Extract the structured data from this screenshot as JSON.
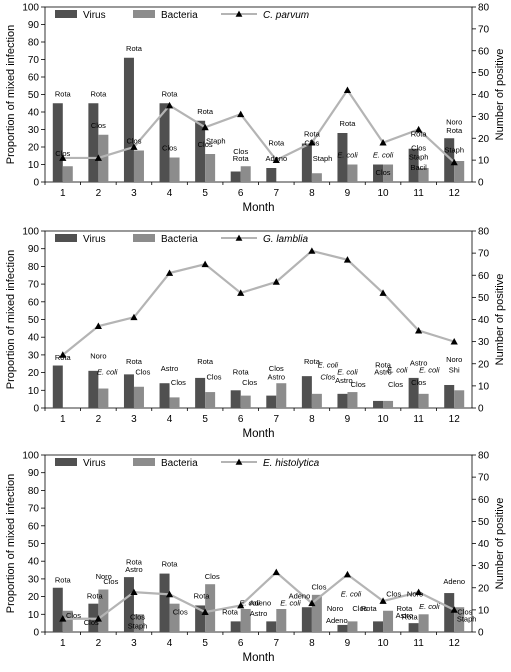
{
  "chart_data": [
    {
      "type": "bar",
      "title": "",
      "categories": [
        "1",
        "2",
        "3",
        "4",
        "5",
        "6",
        "7",
        "8",
        "9",
        "10",
        "11",
        "12"
      ],
      "xlabel": "Month",
      "ylabel": "Proportion of mixed infection",
      "y2label": "Number of positive",
      "ylim": [
        0,
        100
      ],
      "y2lim": [
        0,
        80
      ],
      "yticks": [
        0,
        10,
        20,
        30,
        40,
        50,
        60,
        70,
        80,
        90,
        100
      ],
      "y2ticks": [
        0,
        10,
        20,
        30,
        40,
        50,
        60,
        70,
        80
      ],
      "legend": {
        "position": "top-left",
        "entries": [
          "Virus",
          "Bacteria",
          "C. parvum"
        ],
        "italic": [
          false,
          false,
          true
        ]
      },
      "series": [
        {
          "name": "Virus",
          "kind": "bar",
          "color": "#505050",
          "values": [
            45,
            45,
            71,
            45,
            35,
            6,
            8,
            22,
            28,
            10,
            19,
            25
          ]
        },
        {
          "name": "Bacteria",
          "kind": "bar",
          "color": "#8c8c8c",
          "values": [
            9,
            27,
            18,
            14,
            16,
            9,
            0,
            5,
            10,
            10,
            8,
            12
          ]
        },
        {
          "name": "C. parvum",
          "kind": "line",
          "axis": "right",
          "color": "#b4b4b4",
          "values": [
            11,
            11,
            16,
            35,
            25,
            31,
            10,
            18,
            42,
            18,
            24,
            9
          ]
        }
      ],
      "annotations": [
        {
          "text": "Rota",
          "month": 1,
          "y": 49
        },
        {
          "text": "Clos",
          "month": 1,
          "y": 15
        },
        {
          "text": "Rota",
          "month": 2,
          "y": 49
        },
        {
          "text": "Clos",
          "month": 2,
          "y": 31
        },
        {
          "text": "Rota",
          "month": 3,
          "y": 75
        },
        {
          "text": "Clos",
          "month": 3,
          "y": 22
        },
        {
          "text": "Rota",
          "month": 4,
          "y": 49
        },
        {
          "text": "Clos",
          "month": 4,
          "y": 18
        },
        {
          "text": "Rota",
          "month": 5,
          "y": 39
        },
        {
          "text": "Clos",
          "month": 5,
          "y": 20
        },
        {
          "text": "Staph",
          "month": 5,
          "y": 22,
          "dx": 0.3
        },
        {
          "text": "Rota",
          "month": 6,
          "y": 12
        },
        {
          "text": "Clos",
          "month": 6,
          "y": 16
        },
        {
          "text": "Rota",
          "month": 7,
          "y": 21
        },
        {
          "text": "Adeno",
          "month": 7,
          "y": 12
        },
        {
          "text": "Rota",
          "month": 8,
          "y": 26
        },
        {
          "text": "Clos",
          "month": 8,
          "y": 21
        },
        {
          "text": "Staph",
          "month": 8,
          "y": 12,
          "dx": 0.3
        },
        {
          "text": "Rota",
          "month": 9,
          "y": 32
        },
        {
          "text": "E. coli",
          "month": 9,
          "y": 14,
          "italic": true
        },
        {
          "text": "E. coli",
          "month": 10,
          "y": 14,
          "italic": true
        },
        {
          "text": "Clos",
          "month": 10,
          "y": 4
        },
        {
          "text": "Rota",
          "month": 11,
          "y": 26
        },
        {
          "text": "Clos",
          "month": 11,
          "y": 18
        },
        {
          "text": "Staph",
          "month": 11,
          "y": 13
        },
        {
          "text": "Bacil",
          "month": 11,
          "y": 7
        },
        {
          "text": "Noro",
          "month": 12,
          "y": 33
        },
        {
          "text": "Rota",
          "month": 12,
          "y": 28
        },
        {
          "text": "Staph",
          "month": 12,
          "y": 17
        }
      ]
    },
    {
      "type": "bar",
      "title": "",
      "categories": [
        "1",
        "2",
        "3",
        "4",
        "5",
        "6",
        "7",
        "8",
        "9",
        "10",
        "11",
        "12"
      ],
      "xlabel": "Month",
      "ylabel": "Proportion of mixed infection",
      "y2label": "Number of positive",
      "ylim": [
        0,
        100
      ],
      "y2lim": [
        0,
        80
      ],
      "yticks": [
        0,
        10,
        20,
        30,
        40,
        50,
        60,
        70,
        80,
        90,
        100
      ],
      "y2ticks": [
        0,
        10,
        20,
        30,
        40,
        50,
        60,
        70,
        80
      ],
      "legend": {
        "position": "top-left",
        "entries": [
          "Virus",
          "Bacteria",
          "G. lamblia"
        ],
        "italic": [
          false,
          false,
          true
        ]
      },
      "series": [
        {
          "name": "Virus",
          "kind": "bar",
          "color": "#505050",
          "values": [
            24,
            21,
            19,
            14,
            17,
            10,
            7,
            18,
            8,
            4,
            17,
            13
          ]
        },
        {
          "name": "Bacteria",
          "kind": "bar",
          "color": "#8c8c8c",
          "values": [
            0,
            11,
            12,
            6,
            9,
            7,
            14,
            8,
            9,
            4,
            8,
            10
          ]
        },
        {
          "name": "G. lamblia",
          "kind": "line",
          "axis": "right",
          "color": "#b4b4b4",
          "values": [
            24,
            37,
            41,
            61,
            65,
            52,
            57,
            71,
            67,
            52,
            35,
            30
          ]
        }
      ],
      "annotations": [
        {
          "text": "Rota",
          "month": 1,
          "y": 27
        },
        {
          "text": "Noro",
          "month": 2,
          "y": 28
        },
        {
          "text": "E. coli",
          "month": 2,
          "y": 19,
          "italic": true,
          "dx": 0.25
        },
        {
          "text": "Rota",
          "month": 3,
          "y": 25
        },
        {
          "text": "Clos",
          "month": 3,
          "y": 19,
          "dx": 0.25
        },
        {
          "text": "Astro",
          "month": 4,
          "y": 21
        },
        {
          "text": "Clos",
          "month": 4,
          "y": 13,
          "dx": 0.25
        },
        {
          "text": "Rota",
          "month": 5,
          "y": 25
        },
        {
          "text": "Clos",
          "month": 5,
          "y": 16,
          "dx": 0.25
        },
        {
          "text": "Rota",
          "month": 6,
          "y": 19
        },
        {
          "text": "Clos",
          "month": 6,
          "y": 13,
          "dx": 0.25
        },
        {
          "text": "Clos",
          "month": 7,
          "y": 21
        },
        {
          "text": "Astro",
          "month": 7,
          "y": 16
        },
        {
          "text": "Rota",
          "month": 8,
          "y": 25
        },
        {
          "text": "E. coli",
          "month": 8,
          "y": 23,
          "italic": true,
          "dx": 0.45
        },
        {
          "text": "Clos",
          "month": 8,
          "y": 16,
          "italic": true,
          "dx": 0.45
        },
        {
          "text": "E. coli",
          "month": 9,
          "y": 19,
          "italic": true
        },
        {
          "text": "Astro",
          "month": 9,
          "y": 14,
          "dx": -0.1
        },
        {
          "text": "Clos",
          "month": 9,
          "y": 12,
          "dx": 0.3
        },
        {
          "text": "Rota",
          "month": 10,
          "y": 23
        },
        {
          "text": "Astro",
          "month": 10,
          "y": 19
        },
        {
          "text": "E. coli",
          "month": 10,
          "y": 20,
          "italic": true,
          "dx": 0.4
        },
        {
          "text": "Clos",
          "month": 10,
          "y": 12,
          "dx": 0.35
        },
        {
          "text": "Astro",
          "month": 11,
          "y": 24
        },
        {
          "text": "E. coli",
          "month": 11,
          "y": 20,
          "italic": true,
          "dx": 0.3
        },
        {
          "text": "Clos",
          "month": 11,
          "y": 13
        },
        {
          "text": "Noro",
          "month": 12,
          "y": 26
        },
        {
          "text": "Shi",
          "month": 12,
          "y": 20
        }
      ]
    },
    {
      "type": "bar",
      "title": "",
      "categories": [
        "1",
        "2",
        "3",
        "4",
        "5",
        "6",
        "7",
        "8",
        "9",
        "10",
        "11",
        "12"
      ],
      "xlabel": "Month",
      "ylabel": "Proportion of mixed infection",
      "y2label": "Number of positive",
      "ylim": [
        0,
        100
      ],
      "y2lim": [
        0,
        80
      ],
      "yticks": [
        0,
        10,
        20,
        30,
        40,
        50,
        60,
        70,
        80,
        90,
        100
      ],
      "y2ticks": [
        0,
        10,
        20,
        30,
        40,
        50,
        60,
        70,
        80
      ],
      "legend": {
        "position": "top-left",
        "entries": [
          "Virus",
          "Bacteria",
          "E. histolytica"
        ],
        "italic": [
          false,
          false,
          true
        ]
      },
      "series": [
        {
          "name": "Virus",
          "kind": "bar",
          "color": "#505050",
          "values": [
            25,
            16,
            31,
            33,
            15,
            6,
            6,
            14,
            4,
            6,
            5,
            22
          ]
        },
        {
          "name": "Bacteria",
          "kind": "bar",
          "color": "#8c8c8c",
          "values": [
            12,
            24,
            10,
            16,
            27,
            13,
            13,
            21,
            6,
            12,
            10,
            14
          ]
        },
        {
          "name": "E. histolytica",
          "kind": "line",
          "axis": "right",
          "color": "#b4b4b4",
          "values": [
            6,
            6,
            18,
            17,
            9,
            12,
            27,
            13,
            26,
            14,
            18,
            10
          ]
        }
      ],
      "annotations": [
        {
          "text": "Rota",
          "month": 1,
          "y": 28
        },
        {
          "text": "Clos",
          "month": 1,
          "y": 8,
          "dx": 0.3
        },
        {
          "text": "Noro",
          "month": 2,
          "y": 30,
          "dx": 0.15
        },
        {
          "text": "Rota",
          "month": 2,
          "y": 19,
          "dx": -0.1
        },
        {
          "text": "Clos",
          "month": 2,
          "y": 27,
          "dx": 0.35
        },
        {
          "text": "Clos",
          "month": 2,
          "y": 4,
          "dx": -0.2
        },
        {
          "text": "Rota",
          "month": 3,
          "y": 38
        },
        {
          "text": "Astro",
          "month": 3,
          "y": 34
        },
        {
          "text": "Clos",
          "month": 3,
          "y": 7,
          "dx": 0.1
        },
        {
          "text": "Staph",
          "month": 3,
          "y": 2,
          "dx": 0.1
        },
        {
          "text": "Rota",
          "month": 4,
          "y": 37
        },
        {
          "text": "Clos",
          "month": 4,
          "y": 10,
          "dx": 0.3
        },
        {
          "text": "Clos",
          "month": 5,
          "y": 30,
          "dx": 0.2
        },
        {
          "text": "Rota",
          "month": 5,
          "y": 19,
          "dx": -0.1
        },
        {
          "text": "Rota",
          "month": 6,
          "y": 10,
          "dx": -0.3
        },
        {
          "text": "E. coli",
          "month": 6,
          "y": 15,
          "italic": true,
          "dx": 0.25
        },
        {
          "text": "Adeno",
          "month": 7,
          "y": 15,
          "dx": -0.45
        },
        {
          "text": "Astro",
          "month": 7,
          "y": 9,
          "dx": -0.5
        },
        {
          "text": "E. coli",
          "month": 7,
          "y": 15,
          "italic": true,
          "dx": 0.4
        },
        {
          "text": "Adeno",
          "month": 8,
          "y": 19,
          "dx": -0.35
        },
        {
          "text": "Clos",
          "month": 8,
          "y": 24,
          "dx": 0.2
        },
        {
          "text": "Noro",
          "month": 9,
          "y": 12,
          "dx": -0.35
        },
        {
          "text": "Adeno",
          "month": 9,
          "y": 5,
          "dx": -0.3
        },
        {
          "text": "E. coli",
          "month": 9,
          "y": 20,
          "italic": true,
          "dx": 0.1
        },
        {
          "text": "Clos",
          "month": 9,
          "y": 12,
          "dx": 0.35
        },
        {
          "text": "Rota",
          "month": 10,
          "y": 12,
          "dx": -0.4
        },
        {
          "text": "Clos",
          "month": 10,
          "y": 20,
          "dx": 0.3
        },
        {
          "text": "Rota",
          "month": 10,
          "y": 12,
          "dx": 0.6
        },
        {
          "text": "Astro",
          "month": 10,
          "y": 8,
          "dx": 0.6
        },
        {
          "text": "Noro",
          "month": 11,
          "y": 20,
          "dx": -0.1
        },
        {
          "text": "E. coli",
          "month": 11,
          "y": 13,
          "italic": true,
          "dx": 0.3
        },
        {
          "text": "Rota",
          "month": 11,
          "y": 7,
          "dx": -0.25
        },
        {
          "text": "Adeno",
          "month": 12,
          "y": 27
        },
        {
          "text": "Clos",
          "month": 12,
          "y": 10,
          "dx": 0.3
        },
        {
          "text": "Staph",
          "month": 12,
          "y": 6,
          "dx": 0.35
        }
      ]
    }
  ]
}
